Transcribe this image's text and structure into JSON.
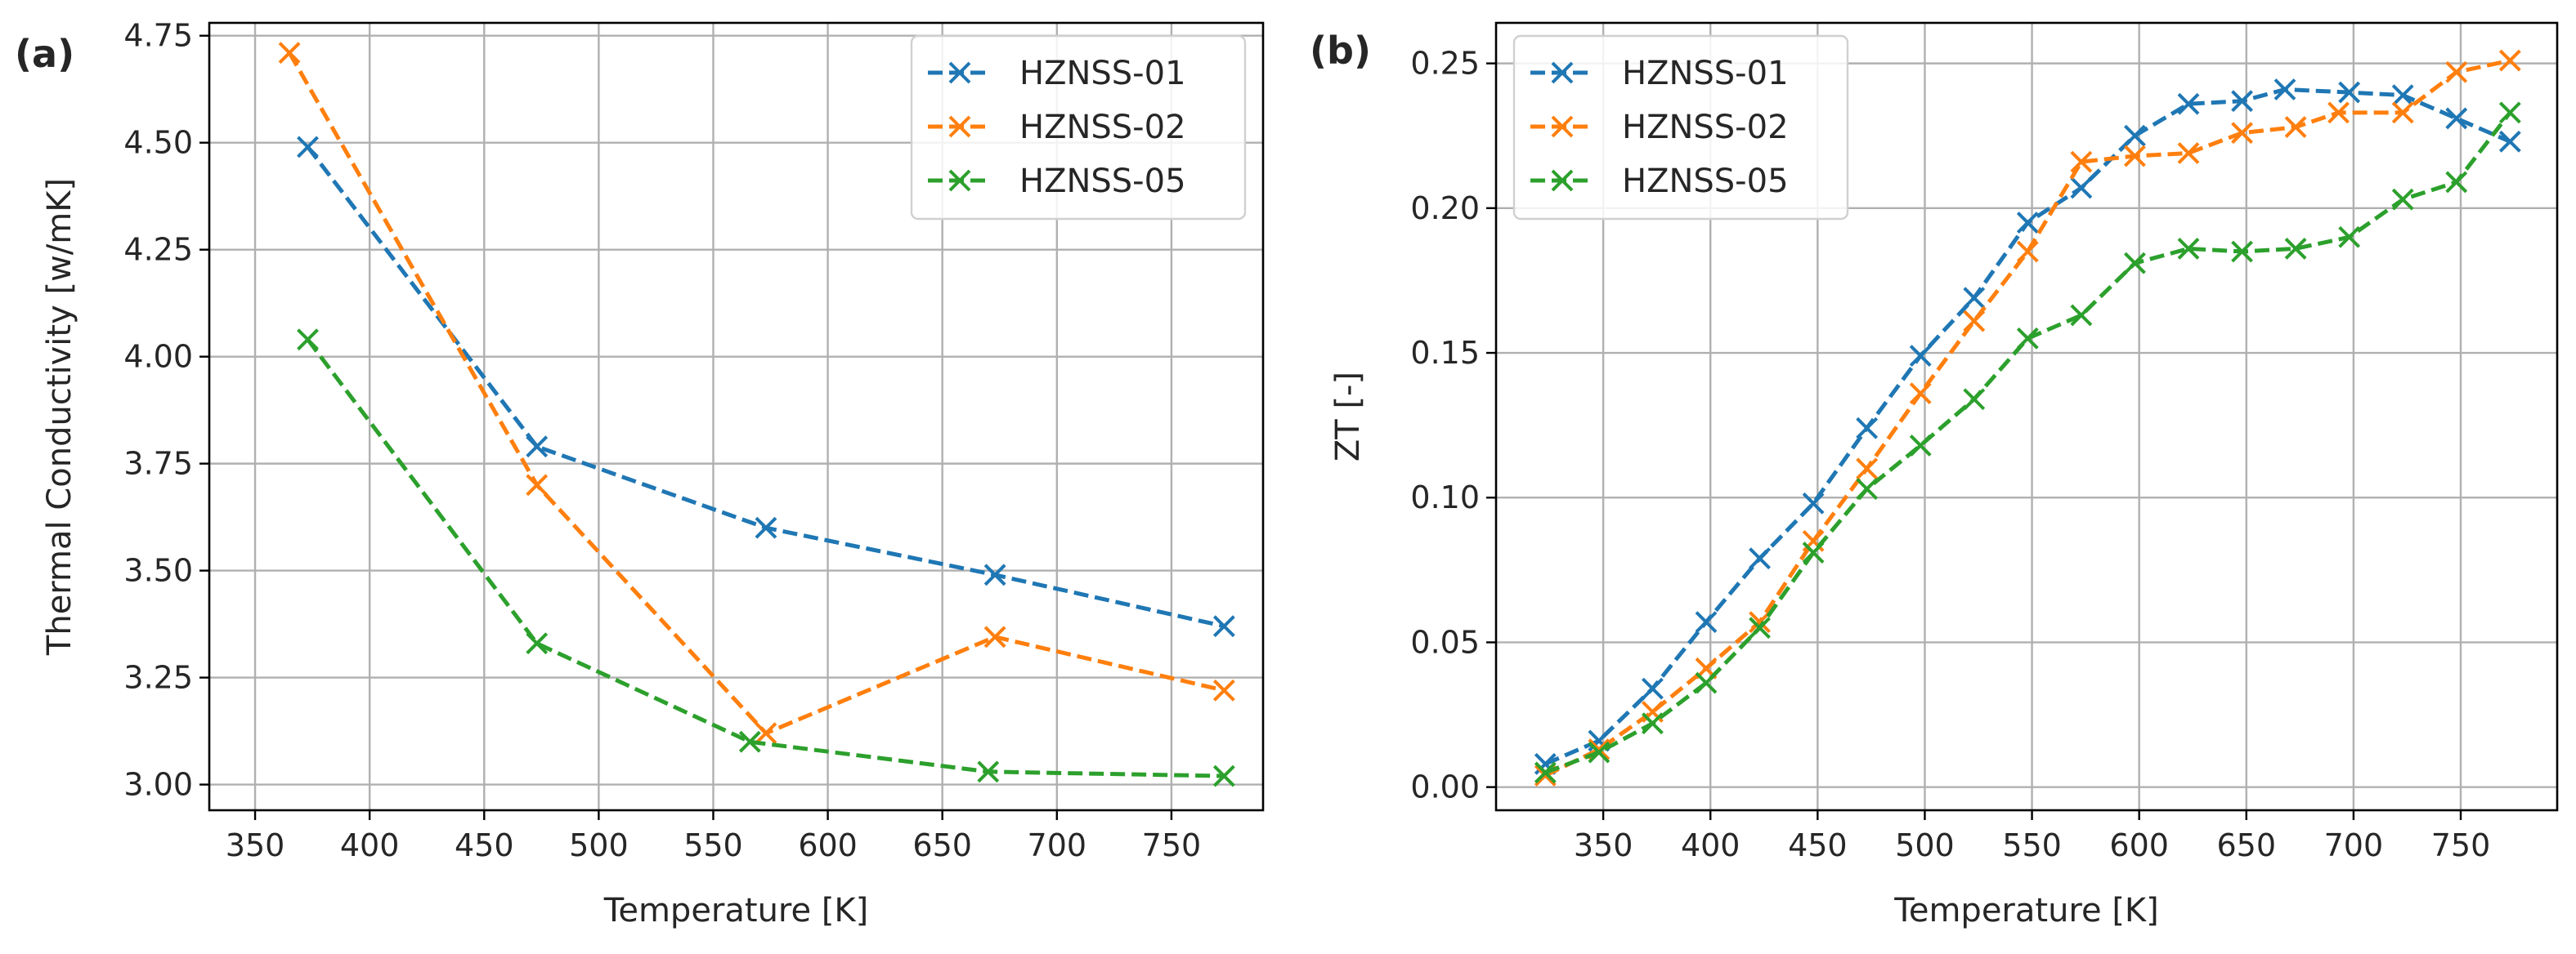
{
  "chart_data": [
    {
      "type": "line",
      "panel_label": "(a)",
      "xlabel": "Temperature [K]",
      "ylabel": "Thermal Conductivity [w/mK]",
      "xlim": [
        330,
        790
      ],
      "ylim": [
        2.94,
        4.78
      ],
      "xticks": [
        350,
        400,
        450,
        500,
        550,
        600,
        650,
        700,
        750
      ],
      "xtick_labels": [
        "350",
        "400",
        "450",
        "500",
        "550",
        "600",
        "650",
        "700",
        "750"
      ],
      "yticks": [
        3.0,
        3.25,
        3.5,
        3.75,
        4.0,
        4.25,
        4.5,
        4.75
      ],
      "ytick_labels": [
        "3.00",
        "3.25",
        "3.50",
        "3.75",
        "4.00",
        "4.25",
        "4.50",
        "4.75"
      ],
      "grid": true,
      "legend_position": "top-right",
      "series": [
        {
          "name": "HZNSS-01",
          "color": "#1f77b4",
          "x": [
            373,
            473,
            573,
            673,
            773
          ],
          "y": [
            4.49,
            3.79,
            3.6,
            3.49,
            3.37
          ]
        },
        {
          "name": "HZNSS-02",
          "color": "#ff7f0e",
          "x": [
            365,
            473,
            573,
            673,
            773
          ],
          "y": [
            4.71,
            3.7,
            3.12,
            3.345,
            3.22
          ]
        },
        {
          "name": "HZNSS-05",
          "color": "#2ca02c",
          "x": [
            373,
            473,
            566,
            670,
            773
          ],
          "y": [
            4.04,
            3.33,
            3.1,
            3.03,
            3.02
          ]
        }
      ]
    },
    {
      "type": "line",
      "panel_label": "(b)",
      "xlabel": "Temperature [K]",
      "ylabel": "ZT [-]",
      "xlim": [
        300,
        795
      ],
      "ylim": [
        -0.008,
        0.264
      ],
      "xticks": [
        350,
        400,
        450,
        500,
        550,
        600,
        650,
        700,
        750
      ],
      "xtick_labels": [
        "350",
        "400",
        "450",
        "500",
        "550",
        "600",
        "650",
        "700",
        "750"
      ],
      "yticks": [
        0.0,
        0.05,
        0.1,
        0.15,
        0.2,
        0.25
      ],
      "ytick_labels": [
        "0.00",
        "0.05",
        "0.10",
        "0.15",
        "0.20",
        "0.25"
      ],
      "grid": true,
      "legend_position": "top-left",
      "series": [
        {
          "name": "HZNSS-01",
          "color": "#1f77b4",
          "x": [
            323,
            348,
            373,
            398,
            423,
            448,
            473,
            498,
            523,
            548,
            573,
            598,
            623,
            648,
            668,
            698,
            723,
            748,
            773
          ],
          "y": [
            0.008,
            0.016,
            0.034,
            0.057,
            0.079,
            0.098,
            0.124,
            0.149,
            0.169,
            0.195,
            0.207,
            0.225,
            0.236,
            0.237,
            0.241,
            0.24,
            0.239,
            0.231,
            0.223
          ]
        },
        {
          "name": "HZNSS-02",
          "color": "#ff7f0e",
          "x": [
            323,
            348,
            373,
            398,
            423,
            448,
            473,
            498,
            523,
            548,
            573,
            598,
            623,
            648,
            673,
            693,
            723,
            748,
            773
          ],
          "y": [
            0.004,
            0.013,
            0.026,
            0.041,
            0.057,
            0.085,
            0.11,
            0.136,
            0.161,
            0.185,
            0.216,
            0.218,
            0.219,
            0.226,
            0.228,
            0.233,
            0.233,
            0.247,
            0.251
          ]
        },
        {
          "name": "HZNSS-05",
          "color": "#2ca02c",
          "x": [
            323,
            348,
            373,
            398,
            423,
            448,
            473,
            498,
            523,
            548,
            573,
            598,
            623,
            648,
            673,
            698,
            723,
            748,
            773
          ],
          "y": [
            0.005,
            0.012,
            0.022,
            0.036,
            0.055,
            0.081,
            0.103,
            0.118,
            0.134,
            0.155,
            0.163,
            0.181,
            0.186,
            0.185,
            0.186,
            0.19,
            0.203,
            0.209,
            0.233
          ]
        }
      ]
    }
  ]
}
